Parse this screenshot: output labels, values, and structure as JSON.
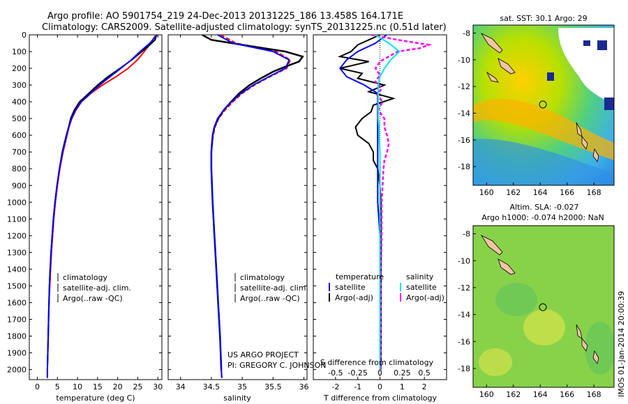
{
  "header": {
    "line1": "Argo profile: AO 5901754_219 24-Dec-2013 20131225_186 13.458S 164.171E",
    "line2": "Climatology: CARS2009. Satellite-adjusted climatology: synTS_20131225.nc (0.51d later)"
  },
  "colors": {
    "climatology": "#ff0000",
    "satellite": "#0000ff",
    "argo": "#000000",
    "sal_satellite": "#00e5e5",
    "sal_argo": "#ff00ff"
  },
  "depth_axis": {
    "ticks": [
      0,
      100,
      200,
      300,
      400,
      500,
      600,
      700,
      800,
      900,
      1000,
      1100,
      1200,
      1300,
      1400,
      1500,
      1600,
      1700,
      1800,
      1900,
      2000
    ],
    "range": [
      0,
      2060
    ]
  },
  "temperature_panel": {
    "xlabel": "temperature (deg C)",
    "xticks": [
      0,
      5,
      10,
      15,
      20,
      25,
      30
    ],
    "xlim": [
      -2,
      31
    ],
    "legend": [
      "climatology",
      "satellite-adj. clim.",
      "Argo(..raw -QC)"
    ]
  },
  "salinity_panel": {
    "xlabel": "salinity",
    "xticks": [
      34,
      34.5,
      35,
      35.5,
      36
    ],
    "xtick_labels": [
      "34",
      "34.5",
      "35",
      "35.5",
      "36"
    ],
    "xlim": [
      33.8,
      36.05
    ],
    "legend": [
      "climatology",
      "satellite-adj. clim.",
      "Argo(..raw -QC)"
    ],
    "project_line1": "US ARGO PROJECT",
    "project_line2": "PI: GREGORY C. JOHNSON"
  },
  "difference_panel": {
    "xlabel_bottom": "T difference from climatology",
    "xlabel_top": "S difference from climatology",
    "t_ticks": [
      -2,
      -1,
      0,
      1,
      2
    ],
    "t_tick_labels": [
      "-2",
      "-1",
      "0",
      "1",
      "2"
    ],
    "s_ticks": [
      -0.5,
      -0.25,
      0,
      0.25,
      0.5
    ],
    "s_tick_labels": [
      "-0.5",
      "-0.25",
      "0",
      "0.25",
      "0.5"
    ],
    "t_xlim": [
      -3,
      3
    ],
    "legend_temperature_title": "temperature",
    "legend_salinity_title": "salinity",
    "legend_items": [
      "satellite",
      "Argo(-adj)"
    ]
  },
  "sst_map": {
    "title": "sat. SST: 30.1  Argo: 29",
    "xticks": [
      "160",
      "162",
      "164",
      "166",
      "168"
    ],
    "yticks": [
      "-8",
      "-10",
      "-12",
      "-14",
      "-16",
      "-18"
    ],
    "float_position": [
      164.171,
      -13.458
    ]
  },
  "sla_map": {
    "title_line1": "Altim. SLA: -0.027",
    "title_line2": "Argo h1000: -0.074 h2000: NaN",
    "xticks": [
      "160",
      "162",
      "164",
      "166",
      "168"
    ],
    "yticks": [
      "-8",
      "-10",
      "-12",
      "-14",
      "-16",
      "-18"
    ],
    "float_position": [
      164.171,
      -13.458
    ]
  },
  "footer_stamp": "IMOS 01-Jan-2014 20:00:39",
  "chart_data": [
    {
      "type": "line",
      "panel": "temperature",
      "x_label": "temperature (deg C)",
      "y_label": "depth",
      "series": [
        {
          "name": "climatology",
          "depth": [
            0,
            50,
            100,
            150,
            200,
            250,
            300,
            350,
            400,
            450,
            500,
            550,
            600,
            700,
            800,
            900,
            1000,
            1100,
            1200,
            1300,
            1400,
            1500,
            1600,
            1700,
            1800,
            1900,
            2000,
            2050
          ],
          "temp": [
            29.5,
            28.2,
            26.6,
            24.9,
            22.6,
            19.6,
            16.2,
            13.3,
            11.0,
            9.6,
            8.6,
            7.9,
            7.4,
            6.4,
            5.6,
            5.0,
            4.5,
            4.1,
            3.8,
            3.5,
            3.3,
            3.1,
            2.9,
            2.8,
            2.7,
            2.6,
            2.5,
            2.5
          ]
        },
        {
          "name": "satellite-adj. clim.",
          "depth": [
            0,
            50,
            100,
            150,
            200,
            250,
            300,
            350,
            400,
            450,
            500,
            550,
            600,
            700,
            800,
            900,
            1000,
            1100,
            1200,
            1300,
            1400,
            1500,
            1600,
            1700,
            1800,
            1900,
            2000,
            2050
          ],
          "temp": [
            29.8,
            28.0,
            25.6,
            23.4,
            20.8,
            18.1,
            15.5,
            13.2,
            10.9,
            9.5,
            8.5,
            7.8,
            7.3,
            6.3,
            5.5,
            4.9,
            4.4,
            4.0,
            3.7,
            3.4,
            3.2,
            3.0,
            2.9,
            2.8,
            2.7,
            2.6,
            2.5,
            2.5
          ]
        },
        {
          "name": "Argo(..raw -QC)",
          "depth": [
            0,
            30,
            60,
            100,
            150,
            200,
            250,
            300,
            350,
            400,
            450,
            500,
            550,
            600,
            700,
            800,
            900,
            1000,
            1100,
            1200,
            1300,
            1400,
            1500,
            1600,
            1700,
            1800,
            1900,
            2000
          ],
          "temp": [
            29.7,
            29.3,
            28.0,
            26.0,
            23.5,
            20.6,
            17.6,
            15.0,
            12.8,
            10.5,
            9.2,
            8.3,
            7.8,
            7.2,
            6.2,
            5.5,
            4.9,
            4.4,
            4.0,
            3.7,
            3.4,
            3.2,
            3.0,
            2.9,
            2.8,
            2.7,
            2.6,
            2.5
          ]
        }
      ]
    },
    {
      "type": "line",
      "panel": "salinity",
      "x_label": "salinity",
      "y_label": "depth",
      "series": [
        {
          "name": "climatology",
          "depth": [
            0,
            50,
            100,
            150,
            200,
            250,
            300,
            350,
            400,
            450,
            500,
            550,
            600,
            700,
            800,
            900,
            1000,
            1200,
            1400,
            1600,
            1800,
            2000,
            2050
          ],
          "sal": [
            34.65,
            34.9,
            35.55,
            35.78,
            35.72,
            35.45,
            35.2,
            35.0,
            34.85,
            34.72,
            34.62,
            34.56,
            34.53,
            34.5,
            34.5,
            34.51,
            34.52,
            34.55,
            34.58,
            34.61,
            34.64,
            34.66,
            34.67
          ]
        },
        {
          "name": "satellite-adj. clim.",
          "depth": [
            0,
            50,
            100,
            150,
            200,
            250,
            300,
            350,
            400,
            450,
            500,
            550,
            600,
            700,
            800,
            900,
            1000,
            1200,
            1400,
            1600,
            1800,
            2000,
            2050
          ],
          "sal": [
            34.6,
            34.85,
            35.5,
            35.76,
            35.7,
            35.43,
            35.18,
            34.98,
            34.83,
            34.7,
            34.6,
            34.55,
            34.52,
            34.5,
            34.5,
            34.51,
            34.52,
            34.55,
            34.58,
            34.61,
            34.64,
            34.66,
            34.67
          ]
        },
        {
          "name": "Argo(..raw -QC)",
          "depth": [
            0,
            30,
            60,
            100,
            130,
            160,
            190,
            220,
            260,
            300,
            350,
            400,
            450,
            500,
            550,
            600,
            700,
            800,
            900,
            1000,
            1200,
            1400,
            1600,
            1800,
            2000
          ],
          "sal": [
            34.35,
            34.5,
            35.0,
            35.7,
            35.98,
            35.92,
            35.7,
            35.5,
            35.3,
            35.12,
            34.95,
            34.82,
            34.7,
            34.61,
            34.55,
            34.52,
            34.5,
            34.5,
            34.51,
            34.52,
            34.55,
            34.58,
            34.61,
            34.64,
            34.66
          ]
        }
      ]
    },
    {
      "type": "line",
      "panel": "difference",
      "x_label": "T difference from climatology",
      "x2_label": "S difference from climatology",
      "y_label": "depth",
      "series": [
        {
          "name": "temperature satellite",
          "depth": [
            0,
            50,
            100,
            150,
            200,
            250,
            300,
            350,
            400,
            450,
            500,
            550,
            600,
            700,
            800,
            900,
            1000,
            1200,
            1400,
            1600,
            1800,
            2000
          ],
          "value": [
            0.3,
            -0.2,
            -1.0,
            -1.5,
            -1.8,
            -1.5,
            -0.7,
            -0.1,
            -0.1,
            -0.1,
            -0.1,
            -0.1,
            -0.1,
            -0.1,
            -0.1,
            -0.1,
            -0.1,
            0.0,
            0.0,
            0.0,
            0.0,
            0.0
          ]
        },
        {
          "name": "temperature Argo(-adj)",
          "depth": [
            0,
            30,
            60,
            100,
            130,
            160,
            200,
            230,
            260,
            300,
            340,
            380,
            420,
            460,
            500,
            550,
            600,
            650,
            700,
            750,
            800,
            900,
            1000,
            1200,
            1400,
            1600,
            1800,
            2000
          ],
          "value": [
            0.0,
            -0.5,
            -1.0,
            -1.3,
            -1.8,
            -0.5,
            -1.8,
            -0.8,
            -1.0,
            0.2,
            -0.5,
            0.6,
            -0.3,
            -0.4,
            -0.8,
            -1.1,
            -1.0,
            -0.5,
            -0.3,
            -0.3,
            -0.1,
            0.0,
            0.05,
            0.05,
            0.05,
            0.05,
            0.05,
            0.05
          ]
        },
        {
          "name": "salinity satellite",
          "depth": [
            0,
            50,
            100,
            150,
            200,
            250,
            300,
            350,
            400,
            450,
            500,
            550,
            600,
            700,
            800,
            900,
            1000,
            1200,
            1400,
            1600,
            1800,
            2000
          ],
          "value": [
            -0.05,
            0.1,
            0.22,
            0.12,
            0.05,
            0.0,
            -0.02,
            -0.02,
            -0.02,
            -0.02,
            -0.02,
            -0.01,
            -0.01,
            0.0,
            0.0,
            0.0,
            0.0,
            0.0,
            0.0,
            0.0,
            0.0,
            0.0
          ]
        },
        {
          "name": "salinity Argo(-adj)",
          "depth": [
            0,
            30,
            60,
            80,
            100,
            130,
            160,
            200,
            240,
            280,
            320,
            360,
            400,
            450,
            500,
            550,
            600,
            650,
            700,
            750,
            800,
            900,
            1000,
            1200,
            1400,
            1600,
            1800,
            2000
          ],
          "value": [
            -0.1,
            0.2,
            0.55,
            0.45,
            0.2,
            0.1,
            0.0,
            -0.05,
            0.0,
            -0.05,
            0.02,
            -0.03,
            0.03,
            -0.02,
            0.05,
            0.05,
            0.08,
            0.1,
            0.08,
            0.05,
            0.04,
            0.03,
            0.02,
            0.02,
            0.01,
            0.01,
            0.01,
            0.01
          ]
        }
      ]
    }
  ]
}
